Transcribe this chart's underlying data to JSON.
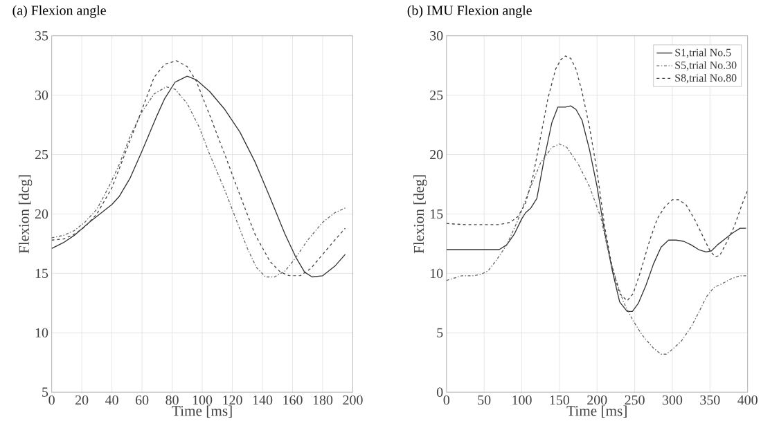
{
  "chart_data": [
    {
      "type": "line",
      "title": "(a) Flexion angle",
      "xlabel": "Time [ms]",
      "ylabel": "Flexion [dcg]",
      "xlim": [
        0,
        200
      ],
      "ylim": [
        5,
        35
      ],
      "xticks": [
        0,
        20,
        40,
        60,
        80,
        100,
        120,
        140,
        160,
        180,
        200
      ],
      "yticks": [
        5,
        10,
        15,
        20,
        25,
        30,
        35
      ],
      "grid": true,
      "series": [
        {
          "color": "#333333",
          "line_style": "solid",
          "x": [
            0,
            8,
            15,
            25,
            32,
            40,
            45,
            52,
            60,
            70,
            75,
            82,
            90,
            96,
            105,
            115,
            125,
            135,
            145,
            155,
            162,
            168,
            173,
            180,
            188,
            195
          ],
          "values": [
            17.1,
            17.6,
            18.2,
            19.3,
            20.0,
            20.8,
            21.5,
            23.0,
            25.3,
            28.3,
            29.7,
            31.1,
            31.6,
            31.3,
            30.3,
            28.8,
            26.9,
            24.4,
            21.4,
            18.3,
            16.4,
            15.1,
            14.7,
            14.8,
            15.6,
            16.6
          ]
        },
        {
          "color": "#666666",
          "line_style": "dashdot",
          "x": [
            0,
            8,
            15,
            22,
            30,
            38,
            45,
            52,
            60,
            68,
            76,
            82,
            90,
            98,
            105,
            115,
            122,
            130,
            136,
            142,
            148,
            155,
            162,
            170,
            180,
            188,
            195
          ],
          "values": [
            18.0,
            18.2,
            18.6,
            19.3,
            20.4,
            22.3,
            24.2,
            26.5,
            28.6,
            30.1,
            30.7,
            30.5,
            29.3,
            27.3,
            25.0,
            22.0,
            19.7,
            17.1,
            15.5,
            14.7,
            14.7,
            15.2,
            16.3,
            17.8,
            19.3,
            20.1,
            20.5
          ]
        },
        {
          "color": "#444444",
          "line_style": "dashed",
          "x": [
            0,
            8,
            15,
            22,
            30,
            40,
            50,
            60,
            68,
            75,
            83,
            90,
            96,
            105,
            115,
            125,
            135,
            145,
            152,
            158,
            165,
            172,
            180,
            188,
            195
          ],
          "values": [
            17.8,
            17.9,
            18.3,
            18.9,
            20.0,
            22.2,
            25.5,
            28.8,
            31.5,
            32.6,
            32.9,
            32.4,
            31.2,
            28.3,
            25.0,
            21.6,
            18.3,
            16.0,
            15.1,
            14.8,
            14.8,
            15.4,
            16.6,
            17.8,
            18.8
          ]
        }
      ]
    },
    {
      "type": "line",
      "title": "(b) IMU Flexion angle",
      "xlabel": "Time [ms]",
      "ylabel": "Flexion [deg]",
      "xlim": [
        0,
        400
      ],
      "ylim": [
        0,
        30
      ],
      "xticks": [
        0,
        50,
        100,
        150,
        200,
        250,
        300,
        350,
        400
      ],
      "yticks": [
        0,
        5,
        10,
        15,
        20,
        25,
        30
      ],
      "grid": true,
      "legend": "top right",
      "series": [
        {
          "name": "S1,trial No.5",
          "color": "#333333",
          "line_style": "solid",
          "x": [
            0,
            30,
            50,
            70,
            80,
            90,
            100,
            105,
            112,
            120,
            130,
            140,
            148,
            158,
            165,
            172,
            180,
            190,
            200,
            210,
            220,
            230,
            240,
            247,
            255,
            265,
            275,
            285,
            295,
            305,
            315,
            325,
            335,
            345,
            352,
            360,
            370,
            380,
            390,
            398
          ],
          "values": [
            12.0,
            12.0,
            12.0,
            12.0,
            12.4,
            13.3,
            14.6,
            15.1,
            15.5,
            16.3,
            19.7,
            22.7,
            24.0,
            24.0,
            24.1,
            23.8,
            22.9,
            20.4,
            17.3,
            13.5,
            10.3,
            7.6,
            6.8,
            6.8,
            7.5,
            9.0,
            10.8,
            12.2,
            12.8,
            12.8,
            12.7,
            12.4,
            12.0,
            11.8,
            11.9,
            12.4,
            12.9,
            13.4,
            13.8,
            13.8
          ]
        },
        {
          "name": "S5,trial No.30",
          "color": "#666666",
          "line_style": "dashdot",
          "x": [
            0,
            10,
            20,
            35,
            45,
            55,
            65,
            80,
            95,
            110,
            125,
            140,
            150,
            160,
            175,
            190,
            205,
            215,
            225,
            235,
            248,
            260,
            275,
            285,
            292,
            300,
            312,
            325,
            335,
            345,
            355,
            365,
            380,
            390,
            398
          ],
          "values": [
            9.4,
            9.6,
            9.8,
            9.8,
            9.9,
            10.2,
            11.0,
            12.4,
            14.5,
            17.0,
            19.3,
            20.6,
            20.9,
            20.6,
            19.2,
            17.3,
            14.7,
            11.8,
            9.5,
            7.6,
            6.0,
            4.8,
            3.7,
            3.2,
            3.2,
            3.6,
            4.3,
            5.5,
            6.7,
            8.0,
            8.8,
            9.1,
            9.6,
            9.8,
            9.8
          ]
        },
        {
          "name": "S8,trial No.80",
          "color": "#444444",
          "line_style": "dashed",
          "x": [
            0,
            25,
            50,
            70,
            85,
            95,
            105,
            115,
            125,
            135,
            145,
            152,
            158,
            165,
            172,
            180,
            190,
            200,
            210,
            220,
            230,
            240,
            248,
            258,
            270,
            280,
            290,
            300,
            308,
            318,
            330,
            340,
            350,
            357,
            363,
            372,
            382,
            392,
            400
          ],
          "values": [
            14.2,
            14.1,
            14.1,
            14.1,
            14.3,
            14.8,
            15.9,
            18.2,
            21.5,
            24.8,
            27.2,
            28.0,
            28.3,
            28.1,
            27.2,
            25.3,
            22.3,
            18.6,
            14.0,
            10.5,
            8.3,
            7.7,
            8.3,
            10.2,
            12.8,
            14.6,
            15.6,
            16.2,
            16.2,
            15.8,
            14.5,
            13.2,
            11.9,
            11.4,
            11.5,
            12.6,
            13.9,
            15.7,
            17.0
          ]
        }
      ]
    }
  ]
}
